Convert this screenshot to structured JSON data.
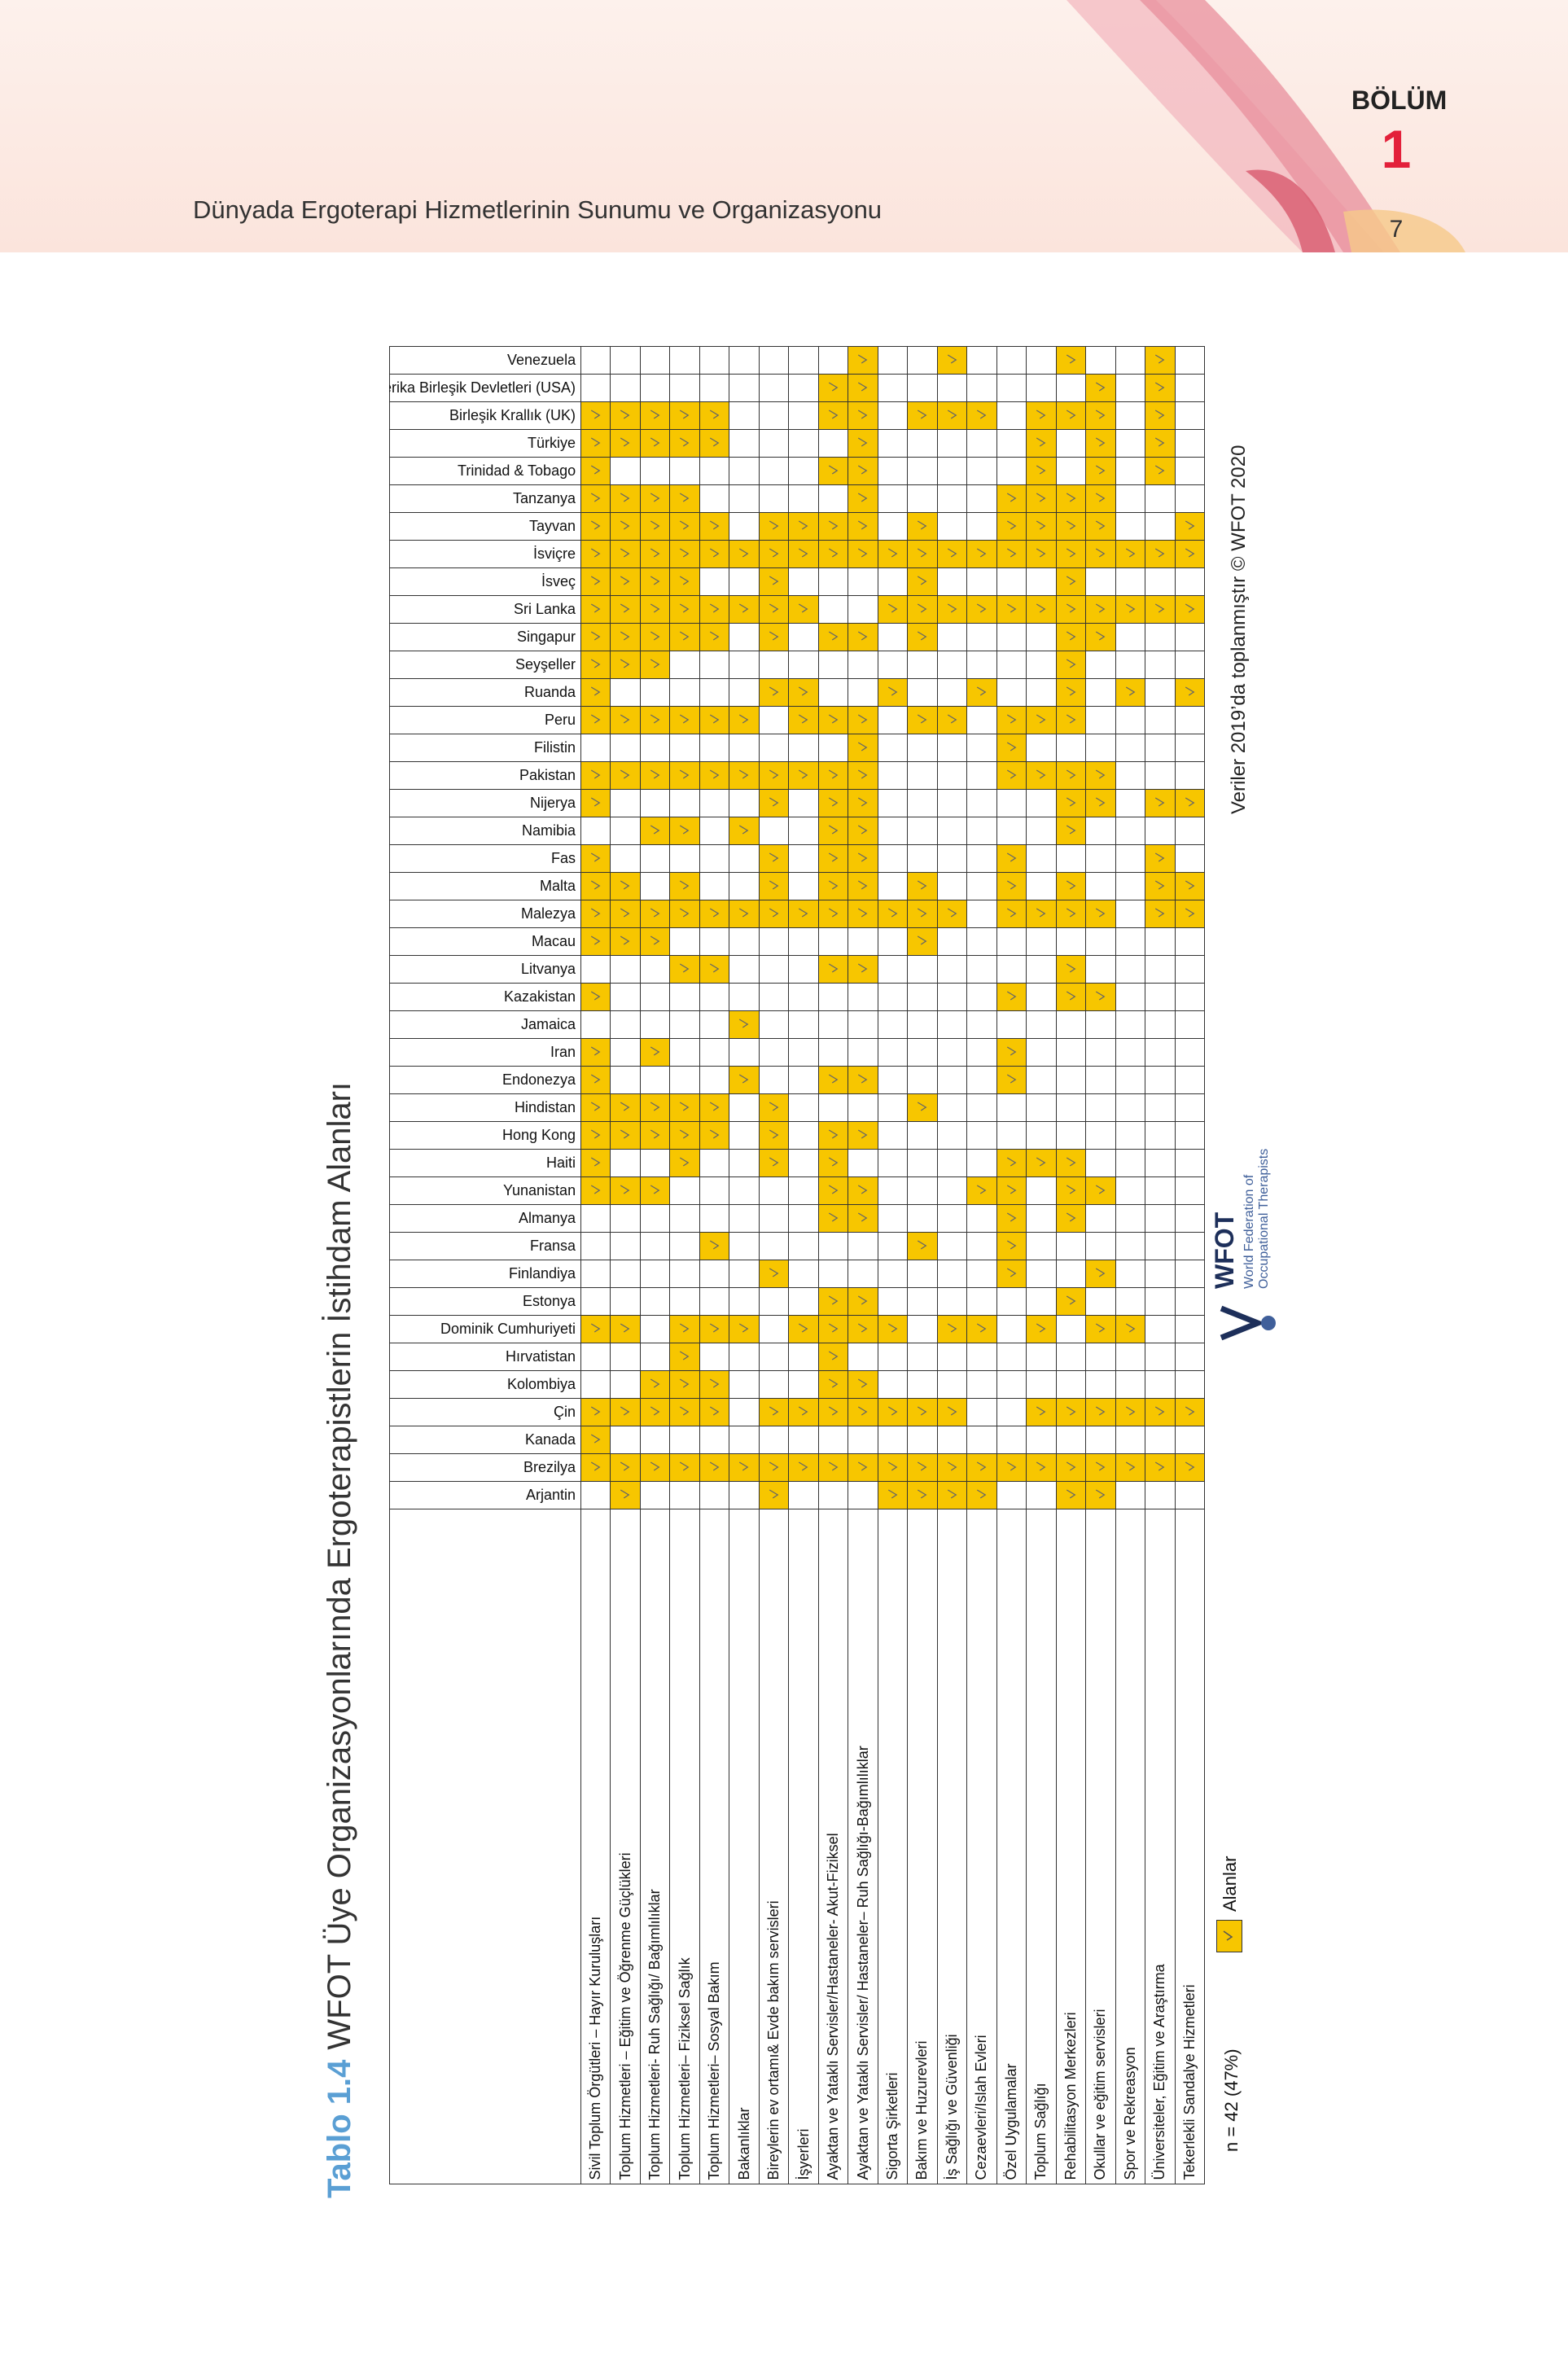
{
  "header": {
    "running_title": "Dünyada Ergoterapi Hizmetlerinin Sunumu ve Organizasyonu",
    "section_label": "BÖLÜM",
    "section_number": "1",
    "page_number": "7"
  },
  "table": {
    "caption_label": "Tablo 1.4",
    "caption": "WFOT Üye Organizasyonlarında Ergoterapistlerin İstihdam Alanları",
    "countries": [
      "Arjantin",
      "Brezilya",
      "Kanada",
      "Çin",
      "Kolombiya",
      "Hırvatistan",
      "Dominik Cumhuriyeti",
      "Estonya",
      "Finlandiya",
      "Fransa",
      "Almanya",
      "Yunanistan",
      "Haiti",
      "Hong Kong",
      "Hindistan",
      "Endonezya",
      "Iran",
      "Jamaica",
      "Kazakistan",
      "Litvanya",
      "Macau",
      "Malezya",
      "Malta",
      "Fas",
      "Namibia",
      "Nijerya",
      "Pakistan",
      "Filistin",
      "Peru",
      "Ruanda",
      "Seyşeller",
      "Singapur",
      "Sri Lanka",
      "İsveç",
      "İsviçre",
      "Tayvan",
      "Tanzanya",
      "Trinidad & Tobago",
      "Türkiye",
      "Birleşik Krallık (UK)",
      "Amerika Birleşik Devletleri (USA)",
      "Venezuela"
    ],
    "areas": [
      "Sivil Toplum Örgütleri – Hayır Kuruluşları",
      "Toplum Hizmetleri – Eğitim ve Öğrenme Güçlükleri",
      "Toplum Hizmetleri- Ruh Sağlığı/ Bağımlılıklar",
      "Toplum Hizmetleri– Fiziksel Sağlık",
      "Toplum Hizmetleri– Sosyal Bakım",
      "Bakanlıklar",
      "Bireylerin ev ortamı& Evde bakım servisleri",
      "İşyerleri",
      "Ayaktan ve Yataklı Servisler/Hastaneler- Akut-Fiziksel",
      "Ayaktan ve Yataklı Servisler/ Hastaneler– Ruh Sağlığı-Bağımlılıklar",
      "Sigorta Şirketleri",
      "Bakım ve Huzurevleri",
      "İş Sağlığı ve Güvenliği",
      "Cezaevleri/Islah Evleri",
      "Özel Uygulamalar",
      "Toplum Sağlığı",
      "Rehabilitasyon Merkezleri",
      "Okullar ve eğitim servisleri",
      "Spor ve Rekreasyon",
      "Üniversiteler, Eğitim ve Araştırma",
      "Tekerlekli Sandalye Hizmetleri"
    ],
    "marks": [
      [
        0,
        1,
        0,
        0,
        0,
        0,
        1,
        0,
        0,
        0,
        1,
        1,
        1,
        1,
        0,
        0,
        1,
        1,
        0,
        0,
        0
      ],
      [
        1,
        1,
        1,
        1,
        1,
        1,
        1,
        1,
        1,
        1,
        1,
        1,
        1,
        1,
        1,
        1,
        1,
        1,
        1,
        1,
        1
      ],
      [
        1,
        0,
        0,
        0,
        0,
        0,
        0,
        0,
        0,
        0,
        0,
        0,
        0,
        0,
        0,
        0,
        0,
        0,
        0,
        0,
        0
      ],
      [
        1,
        1,
        1,
        1,
        1,
        0,
        1,
        1,
        1,
        1,
        1,
        1,
        1,
        0,
        0,
        1,
        1,
        1,
        1,
        1,
        1
      ],
      [
        0,
        0,
        1,
        1,
        1,
        0,
        0,
        0,
        1,
        1,
        0,
        0,
        0,
        0,
        0,
        0,
        0,
        0,
        0,
        0,
        0
      ],
      [
        0,
        0,
        0,
        1,
        0,
        0,
        0,
        0,
        1,
        0,
        0,
        0,
        0,
        0,
        0,
        0,
        0,
        0,
        0,
        0,
        0
      ],
      [
        1,
        1,
        0,
        1,
        1,
        1,
        0,
        1,
        1,
        1,
        1,
        0,
        1,
        1,
        0,
        1,
        0,
        1,
        1,
        0,
        0
      ],
      [
        0,
        0,
        0,
        0,
        0,
        0,
        0,
        0,
        1,
        1,
        0,
        0,
        0,
        0,
        0,
        0,
        1,
        0,
        0,
        0,
        0
      ],
      [
        0,
        0,
        0,
        0,
        0,
        0,
        1,
        0,
        0,
        0,
        0,
        0,
        0,
        0,
        1,
        0,
        0,
        1,
        0,
        0,
        0
      ],
      [
        0,
        0,
        0,
        0,
        1,
        0,
        0,
        0,
        0,
        0,
        0,
        1,
        0,
        0,
        1,
        0,
        0,
        0,
        0,
        0,
        0
      ],
      [
        0,
        0,
        0,
        0,
        0,
        0,
        0,
        0,
        1,
        1,
        0,
        0,
        0,
        0,
        1,
        0,
        1,
        0,
        0,
        0,
        0
      ],
      [
        1,
        1,
        1,
        0,
        0,
        0,
        0,
        0,
        1,
        1,
        0,
        0,
        0,
        1,
        1,
        0,
        1,
        1,
        0,
        0,
        0
      ],
      [
        1,
        0,
        0,
        1,
        0,
        0,
        1,
        0,
        1,
        0,
        0,
        0,
        0,
        0,
        1,
        1,
        1,
        0,
        0,
        0,
        0
      ],
      [
        1,
        1,
        1,
        1,
        1,
        0,
        1,
        0,
        1,
        1,
        0,
        0,
        0,
        0,
        0,
        0,
        0,
        0,
        0,
        0,
        0
      ],
      [
        1,
        1,
        1,
        1,
        1,
        0,
        1,
        0,
        0,
        0,
        0,
        1,
        0,
        0,
        0,
        0,
        0,
        0,
        0,
        0,
        0
      ],
      [
        1,
        0,
        0,
        0,
        0,
        1,
        0,
        0,
        1,
        1,
        0,
        0,
        0,
        0,
        1,
        0,
        0,
        0,
        0,
        0,
        0
      ],
      [
        1,
        0,
        1,
        0,
        0,
        0,
        0,
        0,
        0,
        0,
        0,
        0,
        0,
        0,
        1,
        0,
        0,
        0,
        0,
        0,
        0
      ],
      [
        0,
        0,
        0,
        0,
        0,
        1,
        0,
        0,
        0,
        0,
        0,
        0,
        0,
        0,
        0,
        0,
        0,
        0,
        0,
        0,
        0
      ],
      [
        1,
        0,
        0,
        0,
        0,
        0,
        0,
        0,
        0,
        0,
        0,
        0,
        0,
        0,
        1,
        0,
        1,
        1,
        0,
        0,
        0
      ],
      [
        0,
        0,
        0,
        1,
        1,
        0,
        0,
        0,
        1,
        1,
        0,
        0,
        0,
        0,
        0,
        0,
        1,
        0,
        0,
        0,
        0
      ],
      [
        1,
        1,
        1,
        0,
        0,
        0,
        0,
        0,
        0,
        0,
        0,
        1,
        0,
        0,
        0,
        0,
        0,
        0,
        0,
        0,
        0
      ],
      [
        1,
        1,
        1,
        1,
        1,
        1,
        1,
        1,
        1,
        1,
        1,
        1,
        1,
        0,
        1,
        1,
        1,
        1,
        0,
        1,
        1
      ],
      [
        1,
        1,
        0,
        1,
        0,
        0,
        1,
        0,
        1,
        1,
        0,
        1,
        0,
        0,
        1,
        0,
        1,
        0,
        0,
        1,
        1
      ],
      [
        1,
        0,
        0,
        0,
        0,
        0,
        1,
        0,
        1,
        1,
        0,
        0,
        0,
        0,
        1,
        0,
        0,
        0,
        0,
        1,
        0
      ],
      [
        0,
        0,
        1,
        1,
        0,
        1,
        0,
        0,
        1,
        1,
        0,
        0,
        0,
        0,
        0,
        0,
        1,
        0,
        0,
        0,
        0
      ],
      [
        1,
        0,
        0,
        0,
        0,
        0,
        1,
        0,
        1,
        1,
        0,
        0,
        0,
        0,
        0,
        0,
        1,
        1,
        0,
        1,
        1
      ],
      [
        1,
        1,
        1,
        1,
        1,
        1,
        1,
        1,
        1,
        1,
        0,
        0,
        0,
        0,
        1,
        1,
        1,
        1,
        0,
        0,
        0
      ],
      [
        0,
        0,
        0,
        0,
        0,
        0,
        0,
        0,
        0,
        1,
        0,
        0,
        0,
        0,
        1,
        0,
        0,
        0,
        0,
        0,
        0
      ],
      [
        1,
        1,
        1,
        1,
        1,
        1,
        0,
        1,
        1,
        1,
        0,
        1,
        1,
        0,
        1,
        1,
        1,
        0,
        0,
        0,
        0
      ],
      [
        1,
        0,
        0,
        0,
        0,
        0,
        1,
        1,
        0,
        0,
        1,
        0,
        0,
        1,
        0,
        0,
        1,
        0,
        1,
        0,
        1
      ],
      [
        1,
        1,
        1,
        0,
        0,
        0,
        0,
        0,
        0,
        0,
        0,
        0,
        0,
        0,
        0,
        0,
        1,
        0,
        0,
        0,
        0
      ],
      [
        1,
        1,
        1,
        1,
        1,
        0,
        1,
        0,
        1,
        1,
        0,
        1,
        0,
        0,
        0,
        0,
        1,
        1,
        0,
        0,
        0
      ],
      [
        1,
        1,
        1,
        1,
        1,
        1,
        1,
        1,
        0,
        0,
        1,
        1,
        1,
        1,
        1,
        1,
        1,
        1,
        1,
        1,
        1
      ],
      [
        1,
        1,
        1,
        1,
        0,
        0,
        1,
        0,
        0,
        0,
        0,
        1,
        0,
        0,
        0,
        0,
        1,
        0,
        0,
        0,
        0
      ],
      [
        1,
        1,
        1,
        1,
        1,
        1,
        1,
        1,
        1,
        1,
        1,
        1,
        1,
        1,
        1,
        1,
        1,
        1,
        1,
        1,
        1
      ],
      [
        1,
        1,
        1,
        1,
        1,
        0,
        1,
        1,
        1,
        1,
        0,
        1,
        0,
        0,
        1,
        1,
        1,
        1,
        0,
        0,
        1
      ],
      [
        1,
        1,
        1,
        1,
        0,
        0,
        0,
        0,
        0,
        1,
        0,
        0,
        0,
        0,
        1,
        1,
        1,
        1,
        0,
        0,
        0
      ],
      [
        1,
        0,
        0,
        0,
        0,
        0,
        0,
        0,
        1,
        1,
        0,
        0,
        0,
        0,
        0,
        1,
        0,
        1,
        0,
        1,
        0
      ],
      [
        1,
        1,
        1,
        1,
        1,
        0,
        0,
        0,
        0,
        1,
        0,
        0,
        0,
        0,
        0,
        1,
        0,
        1,
        0,
        1,
        0
      ],
      [
        1,
        1,
        1,
        1,
        1,
        0,
        0,
        0,
        1,
        1,
        0,
        1,
        1,
        1,
        0,
        1,
        1,
        1,
        0,
        1,
        0
      ],
      [
        0,
        0,
        0,
        0,
        0,
        0,
        0,
        0,
        1,
        1,
        0,
        0,
        0,
        0,
        0,
        0,
        0,
        1,
        0,
        1,
        0
      ],
      [
        0,
        0,
        0,
        0,
        0,
        0,
        0,
        0,
        0,
        1,
        0,
        0,
        1,
        0,
        0,
        0,
        1,
        0,
        0,
        1,
        0
      ]
    ]
  },
  "legend": {
    "n": "n = 42 (47%)",
    "label": "Alanlar"
  },
  "source": "Veriler 2019’da toplanmıştır  © WFOT 2020",
  "logo": {
    "name": "WFOT",
    "subtitle": "World Federation of Occupational Therapists"
  }
}
